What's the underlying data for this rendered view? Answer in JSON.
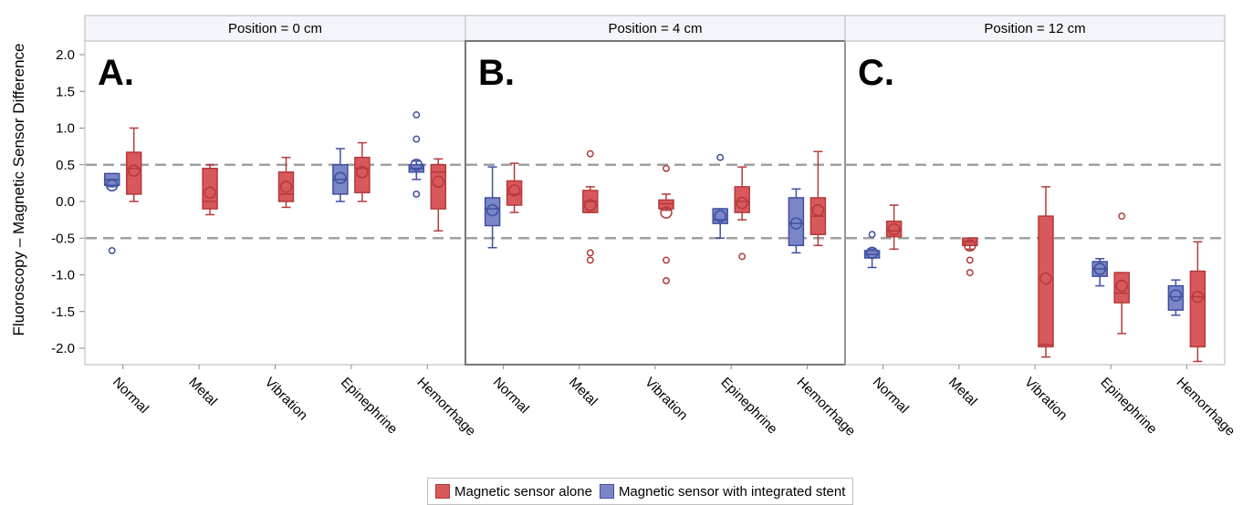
{
  "chart_data": {
    "type": "box",
    "ylabel": "Fluoroscopy – Magnetic Sensor Difference",
    "y_ticks": [
      "2.0",
      "1.5",
      "1.0",
      "0.5",
      "0.0",
      "-0.5",
      "-1.0",
      "-1.5",
      "-2.0"
    ],
    "y_tick_values": [
      2.0,
      1.5,
      1.0,
      0.5,
      0.0,
      -0.5,
      -1.0,
      -1.5,
      -2.0
    ],
    "ylim": [
      -2.2,
      2.2
    ],
    "reference_lines": [
      0.5,
      -0.5
    ],
    "categories": [
      "Normal",
      "Metal",
      "Vibration",
      "Epinephrine",
      "Hemorrhage"
    ],
    "colors": {
      "alone_fill": "#d9585c",
      "alone_stroke": "#b33a3a",
      "stent_fill": "#7a86c6",
      "stent_stroke": "#3f4fa0",
      "reference": "#a0a0a0"
    },
    "legend": [
      {
        "label": "Magnetic sensor alone",
        "color": "#d9585c",
        "border": "#b33a3a"
      },
      {
        "label": "Magnetic sensor with integrated stent",
        "color": "#7a86c6",
        "border": "#3f4fa0"
      }
    ],
    "panels": [
      {
        "header": "Position = 0 cm",
        "letter": "A.",
        "boxes": [
          {
            "category": "Normal",
            "series": "stent",
            "min": 0.2,
            "q1": 0.22,
            "median": 0.3,
            "q3": 0.38,
            "max": 0.38,
            "mean": 0.22,
            "outliers": [
              -0.67
            ]
          },
          {
            "category": "Normal",
            "series": "alone",
            "min": 0.0,
            "q1": 0.1,
            "median": 0.45,
            "q3": 0.67,
            "max": 1.0,
            "mean": 0.42,
            "outliers": []
          },
          {
            "category": "Metal",
            "series": "alone",
            "min": -0.18,
            "q1": -0.1,
            "median": 0.0,
            "q3": 0.45,
            "max": 0.5,
            "mean": 0.12,
            "outliers": []
          },
          {
            "category": "Vibration",
            "series": "alone",
            "min": -0.08,
            "q1": 0.0,
            "median": 0.1,
            "q3": 0.4,
            "max": 0.6,
            "mean": 0.2,
            "outliers": []
          },
          {
            "category": "Epinephrine",
            "series": "stent",
            "min": 0.0,
            "q1": 0.1,
            "median": 0.3,
            "q3": 0.5,
            "max": 0.72,
            "mean": 0.32,
            "outliers": []
          },
          {
            "category": "Epinephrine",
            "series": "alone",
            "min": 0.0,
            "q1": 0.12,
            "median": 0.45,
            "q3": 0.6,
            "max": 0.8,
            "mean": 0.4,
            "outliers": []
          },
          {
            "category": "Hemorrhage",
            "series": "stent",
            "min": 0.3,
            "q1": 0.4,
            "median": 0.45,
            "q3": 0.5,
            "max": 0.55,
            "mean": 0.5,
            "outliers": [
              1.18,
              0.85,
              0.1
            ]
          },
          {
            "category": "Hemorrhage",
            "series": "alone",
            "min": -0.4,
            "q1": -0.1,
            "median": 0.4,
            "q3": 0.5,
            "max": 0.58,
            "mean": 0.27,
            "outliers": []
          }
        ]
      },
      {
        "header": "Position = 4 cm",
        "letter": "B.",
        "boxes": [
          {
            "category": "Normal",
            "series": "stent",
            "min": -0.63,
            "q1": -0.33,
            "median": -0.1,
            "q3": 0.05,
            "max": 0.47,
            "mean": -0.12,
            "outliers": []
          },
          {
            "category": "Normal",
            "series": "alone",
            "min": -0.15,
            "q1": -0.05,
            "median": 0.1,
            "q3": 0.28,
            "max": 0.52,
            "mean": 0.15,
            "outliers": []
          },
          {
            "category": "Metal",
            "series": "alone",
            "min": -0.15,
            "q1": -0.15,
            "median": 0.0,
            "q3": 0.15,
            "max": 0.2,
            "mean": -0.05,
            "outliers": [
              0.65,
              -0.7,
              -0.8
            ]
          },
          {
            "category": "Vibration",
            "series": "alone",
            "min": -0.12,
            "q1": -0.1,
            "median": -0.03,
            "q3": 0.02,
            "max": 0.1,
            "mean": -0.15,
            "outliers": [
              0.45,
              -0.8,
              -1.08
            ]
          },
          {
            "category": "Epinephrine",
            "series": "stent",
            "min": -0.5,
            "q1": -0.3,
            "median": -0.25,
            "q3": -0.1,
            "max": -0.1,
            "mean": -0.2,
            "outliers": [
              0.6
            ]
          },
          {
            "category": "Epinephrine",
            "series": "alone",
            "min": -0.25,
            "q1": -0.15,
            "median": 0.0,
            "q3": 0.2,
            "max": 0.47,
            "mean": -0.02,
            "outliers": [
              -0.75
            ]
          },
          {
            "category": "Hemorrhage",
            "series": "stent",
            "min": -0.7,
            "q1": -0.6,
            "median": -0.3,
            "q3": 0.05,
            "max": 0.17,
            "mean": -0.3,
            "outliers": []
          },
          {
            "category": "Hemorrhage",
            "series": "alone",
            "min": -0.6,
            "q1": -0.45,
            "median": -0.2,
            "q3": 0.05,
            "max": 0.68,
            "mean": -0.12,
            "outliers": []
          }
        ]
      },
      {
        "header": "Position = 12 cm",
        "letter": "C.",
        "boxes": [
          {
            "category": "Normal",
            "series": "stent",
            "min": -0.9,
            "q1": -0.77,
            "median": -0.72,
            "q3": -0.67,
            "max": -0.65,
            "mean": -0.7,
            "outliers": [
              -0.45
            ]
          },
          {
            "category": "Normal",
            "series": "alone",
            "min": -0.65,
            "q1": -0.48,
            "median": -0.4,
            "q3": -0.27,
            "max": -0.05,
            "mean": -0.38,
            "outliers": []
          },
          {
            "category": "Metal",
            "series": "alone",
            "min": -0.65,
            "q1": -0.6,
            "median": -0.55,
            "q3": -0.5,
            "max": -0.5,
            "mean": -0.6,
            "outliers": [
              -0.8,
              -0.97
            ]
          },
          {
            "category": "Vibration",
            "series": "alone",
            "min": -2.12,
            "q1": -1.98,
            "median": -1.95,
            "q3": -0.2,
            "max": 0.2,
            "mean": -1.05,
            "outliers": []
          },
          {
            "category": "Epinephrine",
            "series": "stent",
            "min": -1.15,
            "q1": -1.02,
            "median": -0.92,
            "q3": -0.82,
            "max": -0.78,
            "mean": -0.92,
            "outliers": []
          },
          {
            "category": "Epinephrine",
            "series": "alone",
            "min": -1.8,
            "q1": -1.38,
            "median": -1.25,
            "q3": -0.97,
            "max": -0.97,
            "mean": -1.15,
            "outliers": [
              -0.2
            ]
          },
          {
            "category": "Hemorrhage",
            "series": "stent",
            "min": -1.55,
            "q1": -1.48,
            "median": -1.3,
            "q3": -1.15,
            "max": -1.07,
            "mean": -1.28,
            "outliers": []
          },
          {
            "category": "Hemorrhage",
            "series": "alone",
            "min": -2.18,
            "q1": -1.98,
            "median": -1.3,
            "q3": -0.95,
            "max": -0.55,
            "mean": -1.3,
            "outliers": []
          }
        ]
      }
    ]
  }
}
